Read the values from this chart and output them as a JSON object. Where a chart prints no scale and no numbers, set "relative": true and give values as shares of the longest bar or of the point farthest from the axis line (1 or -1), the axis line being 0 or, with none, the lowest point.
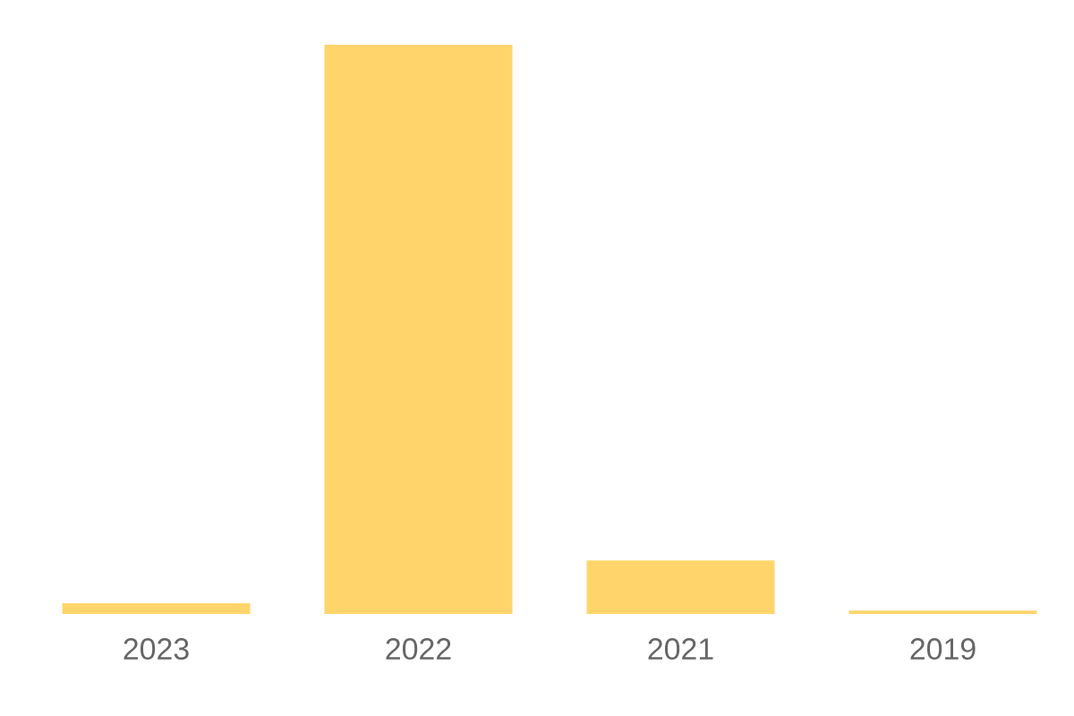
{
  "chart_data": {
    "type": "bar",
    "relative": true,
    "categories": [
      "2023",
      "2022",
      "2021",
      "2019"
    ],
    "values": [
      0.019,
      1,
      0.094,
      0.006
    ],
    "color": "#ffd56b"
  }
}
